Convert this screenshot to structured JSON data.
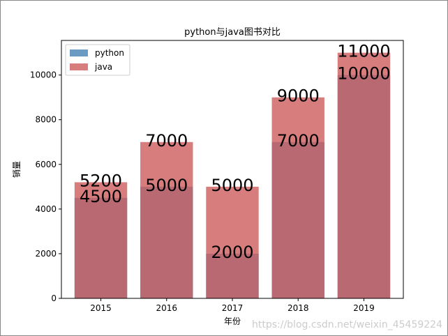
{
  "chart_data": {
    "type": "bar",
    "title": "python与java图书对比",
    "x_label": "年份",
    "y_label": "销量",
    "categories": [
      "2015",
      "2016",
      "2017",
      "2018",
      "2019"
    ],
    "series": [
      {
        "name": "python",
        "color": "#4682b4",
        "values": [
          4500,
          5000,
          2000,
          7000,
          10000
        ]
      },
      {
        "name": "java",
        "color": "#cd5c5c",
        "values": [
          5200,
          7000,
          5000,
          9000,
          11000
        ]
      }
    ],
    "ylim": [
      0,
      11550
    ],
    "yticks": [
      0,
      2000,
      4000,
      6000,
      8000,
      10000
    ],
    "legend": "upper left",
    "watermark": "https://blog.csdn.net/weixin_45459224"
  }
}
